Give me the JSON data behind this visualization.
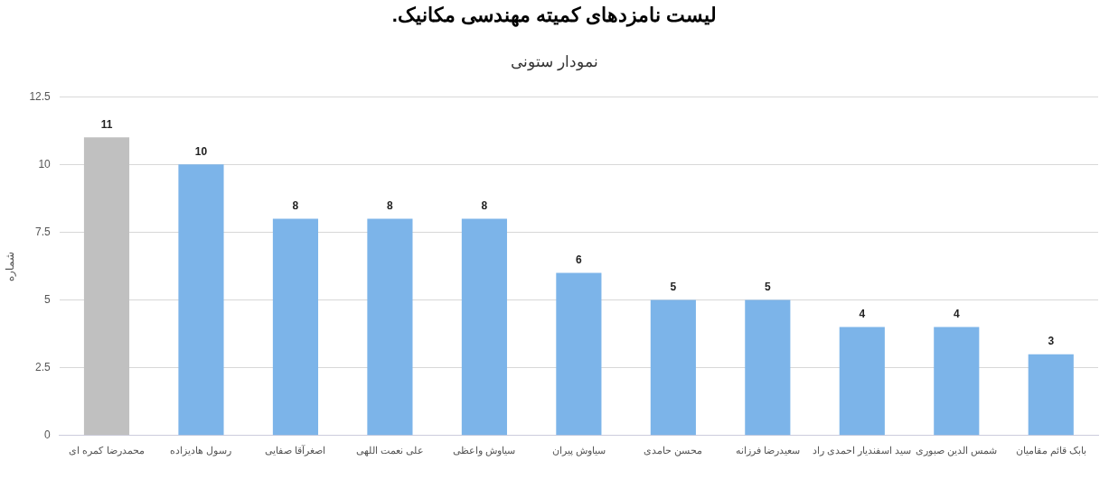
{
  "chart_data": {
    "type": "bar",
    "title": "لیست نامزدهای کمیته مهندسی مکانیک.",
    "subtitle": "نمودار ستونی",
    "ylabel": "شماره",
    "categories": [
      "محمدرضا کمره ای",
      "رسول هادیزاده",
      "اصغرآقا صفایی",
      "علی نعمت اللهی",
      "سیاوش واعظی",
      "سیاوش پیران",
      "محسن حامدی",
      "سعیدرضا فرزانه",
      "سید اسفندیار احمدی راد",
      "شمس الدین صبوری",
      "بابک قائم مقامیان"
    ],
    "values": [
      11,
      10,
      8,
      8,
      8,
      6,
      5,
      5,
      4,
      4,
      3
    ],
    "colors": [
      "#c0c0c0",
      "#7cb4e9",
      "#7cb4e9",
      "#7cb4e9",
      "#7cb4e9",
      "#7cb4e9",
      "#7cb4e9",
      "#7cb4e9",
      "#7cb4e9",
      "#7cb4e9",
      "#7cb4e9"
    ],
    "ylim": [
      0,
      12.5
    ],
    "yticks": [
      0,
      2.5,
      5,
      7.5,
      10,
      12.5
    ],
    "grid": "y",
    "data_labels": true,
    "legend": false
  }
}
